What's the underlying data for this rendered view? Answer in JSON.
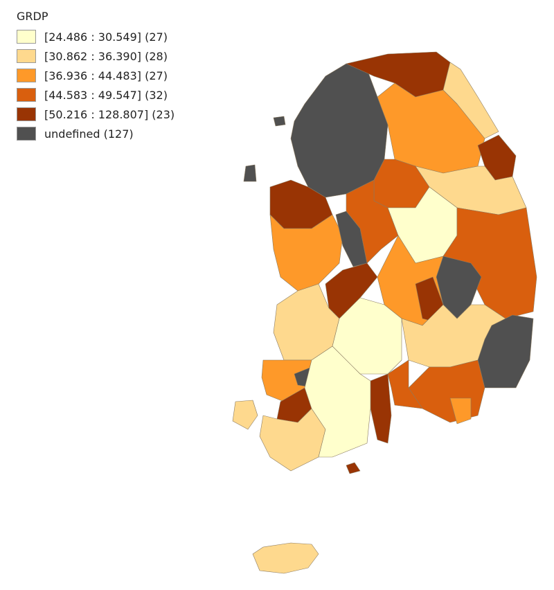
{
  "legend": {
    "title": "GRDP",
    "items": [
      {
        "label": "[24.486 : 30.549] (27)",
        "color": "#ffffcc"
      },
      {
        "label": "[30.862 : 36.390] (28)",
        "color": "#fed98e"
      },
      {
        "label": "[36.936 : 44.483] (27)",
        "color": "#fe9929"
      },
      {
        "label": "[44.583 : 49.547] (32)",
        "color": "#d95f0e"
      },
      {
        "label": "[50.216 : 128.807] (23)",
        "color": "#993404"
      },
      {
        "label": "undefined (127)",
        "color": "#505050"
      }
    ]
  }
}
